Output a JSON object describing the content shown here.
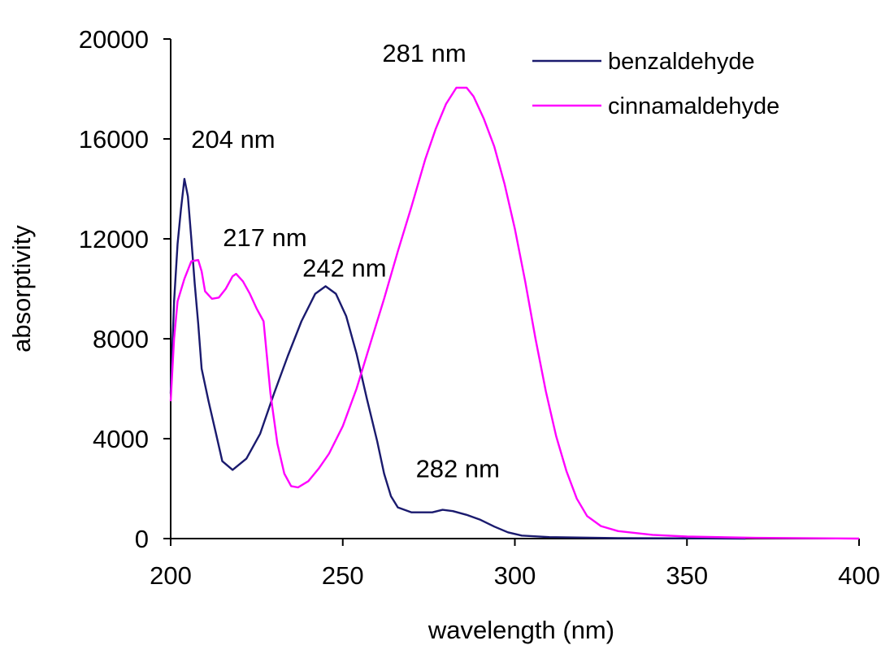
{
  "chart_data": {
    "type": "line",
    "title": "",
    "xlabel": "wavelength (nm)",
    "ylabel": "absorptivity",
    "xlim": [
      200,
      400
    ],
    "ylim": [
      0,
      20000
    ],
    "xticks": [
      200,
      250,
      300,
      350,
      400
    ],
    "yticks": [
      0,
      4000,
      8000,
      12000,
      16000,
      20000
    ],
    "grid": false,
    "legend_position": "top-right",
    "series": [
      {
        "name": "benzaldehyde",
        "color": "#1a1a6e",
        "points": [
          [
            200,
            5800
          ],
          [
            201,
            9500
          ],
          [
            202,
            11800
          ],
          [
            203,
            13200
          ],
          [
            204,
            14400
          ],
          [
            205,
            13700
          ],
          [
            206,
            12000
          ],
          [
            207,
            10200
          ],
          [
            208,
            8600
          ],
          [
            209,
            6800
          ],
          [
            211,
            5500
          ],
          [
            213,
            4300
          ],
          [
            215,
            3100
          ],
          [
            218,
            2750
          ],
          [
            222,
            3200
          ],
          [
            226,
            4200
          ],
          [
            230,
            5800
          ],
          [
            234,
            7300
          ],
          [
            238,
            8700
          ],
          [
            242,
            9800
          ],
          [
            245,
            10100
          ],
          [
            248,
            9800
          ],
          [
            251,
            8900
          ],
          [
            254,
            7400
          ],
          [
            257,
            5600
          ],
          [
            260,
            3900
          ],
          [
            262,
            2600
          ],
          [
            264,
            1700
          ],
          [
            266,
            1250
          ],
          [
            270,
            1050
          ],
          [
            276,
            1050
          ],
          [
            279,
            1150
          ],
          [
            282,
            1100
          ],
          [
            286,
            950
          ],
          [
            290,
            750
          ],
          [
            294,
            480
          ],
          [
            298,
            250
          ],
          [
            302,
            120
          ],
          [
            310,
            60
          ],
          [
            330,
            20
          ],
          [
            350,
            10
          ],
          [
            367,
            0
          ]
        ]
      },
      {
        "name": "cinnamaldehyde",
        "color": "#ff00ff",
        "points": [
          [
            200,
            5500
          ],
          [
            201,
            8000
          ],
          [
            202,
            9500
          ],
          [
            204,
            10400
          ],
          [
            206,
            11100
          ],
          [
            208,
            11150
          ],
          [
            209,
            10700
          ],
          [
            210,
            9900
          ],
          [
            212,
            9600
          ],
          [
            214,
            9650
          ],
          [
            216,
            10000
          ],
          [
            218,
            10500
          ],
          [
            219,
            10600
          ],
          [
            221,
            10300
          ],
          [
            223,
            9800
          ],
          [
            225,
            9200
          ],
          [
            227,
            8700
          ],
          [
            229,
            5800
          ],
          [
            231,
            3800
          ],
          [
            233,
            2600
          ],
          [
            235,
            2100
          ],
          [
            237,
            2050
          ],
          [
            240,
            2300
          ],
          [
            243,
            2800
          ],
          [
            246,
            3400
          ],
          [
            250,
            4500
          ],
          [
            254,
            6000
          ],
          [
            258,
            7800
          ],
          [
            262,
            9600
          ],
          [
            266,
            11500
          ],
          [
            270,
            13300
          ],
          [
            274,
            15200
          ],
          [
            277,
            16400
          ],
          [
            280,
            17400
          ],
          [
            283,
            18050
          ],
          [
            286,
            18050
          ],
          [
            288,
            17700
          ],
          [
            291,
            16800
          ],
          [
            294,
            15700
          ],
          [
            297,
            14200
          ],
          [
            300,
            12400
          ],
          [
            303,
            10300
          ],
          [
            306,
            8000
          ],
          [
            309,
            5900
          ],
          [
            312,
            4100
          ],
          [
            315,
            2700
          ],
          [
            318,
            1600
          ],
          [
            321,
            900
          ],
          [
            325,
            500
          ],
          [
            330,
            300
          ],
          [
            340,
            150
          ],
          [
            350,
            80
          ],
          [
            370,
            30
          ],
          [
            400,
            0
          ]
        ]
      }
    ],
    "annotations": [
      {
        "text": "204 nm",
        "x": 204,
        "y": 14400
      },
      {
        "text": "217 nm",
        "x": 217,
        "y": 10600
      },
      {
        "text": "242 nm",
        "x": 242,
        "y": 10100
      },
      {
        "text": "281 nm",
        "x": 281,
        "y": 18050
      },
      {
        "text": "282 nm",
        "x": 282,
        "y": 1150
      }
    ]
  }
}
